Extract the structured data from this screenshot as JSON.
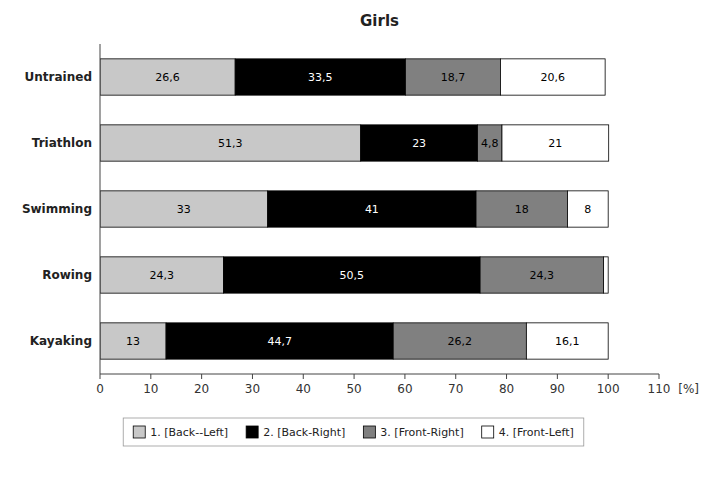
{
  "chart_data": {
    "type": "bar",
    "orientation": "horizontal",
    "stacked": true,
    "data_labels": true,
    "grid": false,
    "legend": "bottom",
    "title": "Girls",
    "xlabel": "[%]",
    "categories": [
      "Untrained",
      "Triathlon",
      "Swimming",
      "Rowing",
      "Kayaking"
    ],
    "series": [
      {
        "name": "1. [Back--Left]",
        "color": "#c8c8c8",
        "values": [
          26.6,
          51.3,
          33.0,
          24.3,
          13.0
        ],
        "value_labels": [
          "26,6",
          "51,3",
          "33",
          "24,3",
          "13"
        ]
      },
      {
        "name": "2. [Back-Right]",
        "color": "#000000",
        "values": [
          33.5,
          23.0,
          41.0,
          50.5,
          44.7
        ],
        "value_labels": [
          "33,5",
          "23",
          "41",
          "50,5",
          "44,7"
        ]
      },
      {
        "name": "3. [Front-Right]",
        "color": "#808080",
        "values": [
          18.7,
          4.8,
          18.0,
          24.3,
          26.2
        ],
        "value_labels": [
          "18,7",
          "4,8",
          "18",
          "24,3",
          "26,2"
        ]
      },
      {
        "name": "4. [Front-Left]",
        "color": "#ffffff",
        "values": [
          20.6,
          21.0,
          8.0,
          0.9,
          16.1
        ],
        "value_labels": [
          "20,6",
          "21",
          "8",
          null,
          "16,1"
        ]
      }
    ],
    "xlim": [
      0,
      110
    ],
    "xticks": [
      0,
      10,
      20,
      30,
      40,
      50,
      60,
      70,
      80,
      90,
      100,
      110
    ]
  }
}
